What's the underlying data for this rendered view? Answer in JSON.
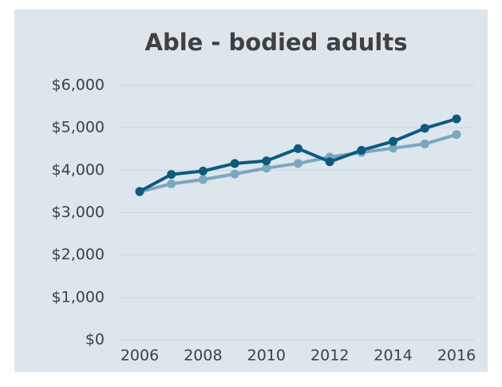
{
  "chart_data": {
    "type": "line",
    "title": "Able - bodied adults",
    "x": [
      2006,
      2007,
      2008,
      2009,
      2010,
      2011,
      2012,
      2013,
      2014,
      2015,
      2016
    ],
    "series": [
      {
        "color": "#0d5a7d",
        "values": [
          3500,
          3900,
          3980,
          4160,
          4220,
          4510,
          4200,
          4470,
          4680,
          4990,
          5210
        ]
      },
      {
        "color": "#7ba7c0",
        "values": [
          3490,
          3680,
          3780,
          3910,
          4050,
          4160,
          4310,
          4420,
          4520,
          4620,
          4840
        ]
      }
    ],
    "xlim": [
      2006,
      2016
    ],
    "xticks": [
      2006,
      2008,
      2010,
      2012,
      2014,
      2016
    ],
    "ylim": [
      0,
      6000
    ],
    "yticks": [
      {
        "value": 0,
        "label": "$0"
      },
      {
        "value": 1000,
        "label": "$1,000"
      },
      {
        "value": 2000,
        "label": "$2,000"
      },
      {
        "value": 3000,
        "label": "$3,000"
      },
      {
        "value": 4000,
        "label": "$4,000"
      },
      {
        "value": 5000,
        "label": "$5,000"
      },
      {
        "value": 6000,
        "label": "$6,000"
      }
    ],
    "grid": true
  }
}
